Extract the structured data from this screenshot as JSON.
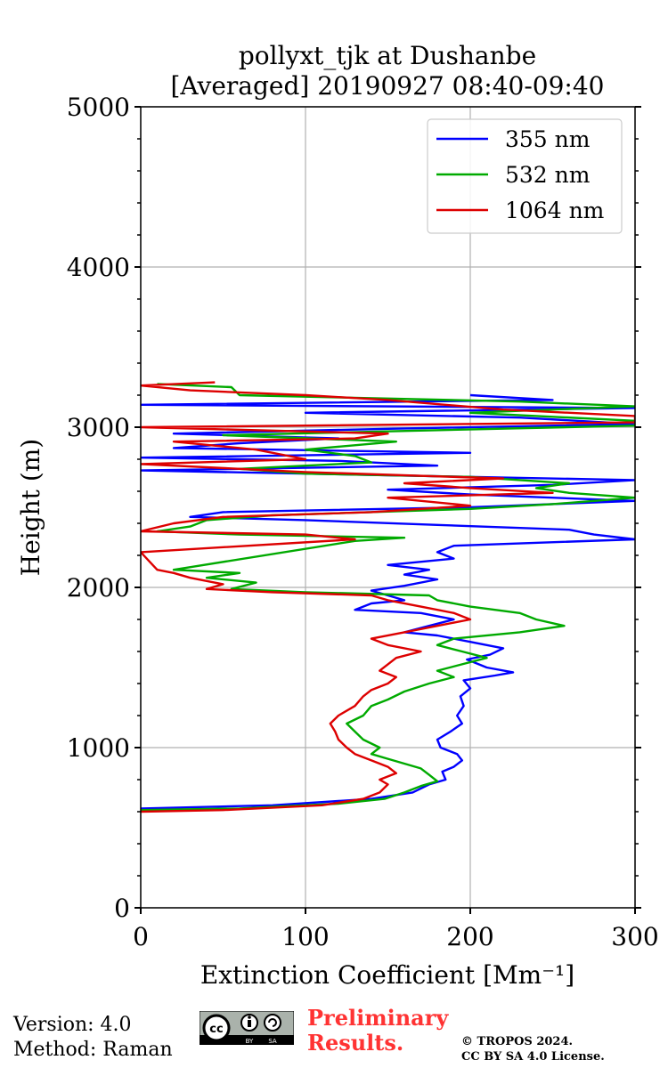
{
  "chart_data": {
    "type": "line",
    "title": "pollyxt_tjk at Dushanbe",
    "subtitle": "[Averaged] 20190927 08:40-09:40",
    "xlabel": "Extinction Coefficient [Mm⁻¹]",
    "ylabel": "Height (m)",
    "xlim": [
      0,
      300
    ],
    "ylim": [
      0,
      5000
    ],
    "xticks": [
      0,
      100,
      200,
      300
    ],
    "xtick_labels": [
      "0",
      "100",
      "200",
      "300"
    ],
    "yticks": [
      0,
      1000,
      2000,
      3000,
      4000,
      5000
    ],
    "ytick_labels": [
      "0",
      "1000",
      "2000",
      "3000",
      "4000",
      "5000"
    ],
    "grid": true,
    "legend_position": "top-right",
    "series": [
      {
        "name": "355 nm",
        "color": "#0000ff",
        "points": [
          [
            0,
            620
          ],
          [
            80,
            640
          ],
          [
            140,
            680
          ],
          [
            165,
            720
          ],
          [
            175,
            770
          ],
          [
            185,
            800
          ],
          [
            183,
            850
          ],
          [
            190,
            880
          ],
          [
            195,
            920
          ],
          [
            192,
            960
          ],
          [
            182,
            1000
          ],
          [
            180,
            1050
          ],
          [
            188,
            1100
          ],
          [
            195,
            1150
          ],
          [
            192,
            1200
          ],
          [
            196,
            1260
          ],
          [
            194,
            1320
          ],
          [
            200,
            1370
          ],
          [
            196,
            1420
          ],
          [
            215,
            1450
          ],
          [
            226,
            1470
          ],
          [
            210,
            1500
          ],
          [
            198,
            1550
          ],
          [
            212,
            1580
          ],
          [
            220,
            1620
          ],
          [
            200,
            1660
          ],
          [
            180,
            1700
          ],
          [
            160,
            1720
          ],
          [
            175,
            1760
          ],
          [
            190,
            1800
          ],
          [
            170,
            1840
          ],
          [
            130,
            1860
          ],
          [
            140,
            1900
          ],
          [
            160,
            1920
          ],
          [
            150,
            1950
          ],
          [
            140,
            1980
          ],
          [
            160,
            2010
          ],
          [
            180,
            2050
          ],
          [
            160,
            2080
          ],
          [
            175,
            2110
          ],
          [
            150,
            2140
          ],
          [
            190,
            2180
          ],
          [
            180,
            2220
          ],
          [
            190,
            2260
          ],
          [
            300,
            2300
          ],
          [
            275,
            2330
          ],
          [
            260,
            2360
          ],
          [
            180,
            2390
          ],
          [
            100,
            2420
          ],
          [
            30,
            2440
          ],
          [
            50,
            2470
          ],
          [
            200,
            2500
          ],
          [
            300,
            2540
          ],
          [
            200,
            2580
          ],
          [
            150,
            2610
          ],
          [
            250,
            2640
          ],
          [
            300,
            2670
          ],
          [
            150,
            2700
          ],
          [
            0,
            2730
          ],
          [
            180,
            2760
          ],
          [
            120,
            2790
          ],
          [
            0,
            2810
          ],
          [
            200,
            2840
          ],
          [
            20,
            2870
          ],
          [
            60,
            2900
          ],
          [
            120,
            2930
          ],
          [
            20,
            2960
          ],
          [
            150,
            2990
          ],
          [
            300,
            3020
          ],
          [
            230,
            3060
          ],
          [
            100,
            3090
          ],
          [
            300,
            3120
          ],
          [
            0,
            3140
          ],
          [
            250,
            3170
          ],
          [
            200,
            3200
          ]
        ]
      },
      {
        "name": "532 nm",
        "color": "#00aa00",
        "points": [
          [
            0,
            610
          ],
          [
            60,
            620
          ],
          [
            120,
            650
          ],
          [
            148,
            680
          ],
          [
            160,
            720
          ],
          [
            170,
            760
          ],
          [
            180,
            790
          ],
          [
            175,
            830
          ],
          [
            170,
            870
          ],
          [
            160,
            900
          ],
          [
            150,
            930
          ],
          [
            140,
            960
          ],
          [
            145,
            1000
          ],
          [
            135,
            1050
          ],
          [
            130,
            1100
          ],
          [
            125,
            1150
          ],
          [
            135,
            1200
          ],
          [
            140,
            1260
          ],
          [
            150,
            1300
          ],
          [
            160,
            1350
          ],
          [
            175,
            1400
          ],
          [
            190,
            1440
          ],
          [
            180,
            1480
          ],
          [
            195,
            1520
          ],
          [
            210,
            1560
          ],
          [
            195,
            1600
          ],
          [
            180,
            1640
          ],
          [
            190,
            1680
          ],
          [
            230,
            1720
          ],
          [
            257,
            1760
          ],
          [
            240,
            1800
          ],
          [
            230,
            1840
          ],
          [
            200,
            1880
          ],
          [
            180,
            1920
          ],
          [
            175,
            1950
          ],
          [
            100,
            1970
          ],
          [
            55,
            1990
          ],
          [
            70,
            2030
          ],
          [
            40,
            2060
          ],
          [
            60,
            2090
          ],
          [
            20,
            2110
          ],
          [
            130,
            2290
          ],
          [
            160,
            2310
          ],
          [
            60,
            2330
          ],
          [
            10,
            2350
          ],
          [
            30,
            2380
          ],
          [
            40,
            2420
          ],
          [
            80,
            2450
          ],
          [
            200,
            2490
          ],
          [
            250,
            2520
          ],
          [
            300,
            2560
          ],
          [
            260,
            2590
          ],
          [
            240,
            2620
          ],
          [
            260,
            2650
          ],
          [
            200,
            2690
          ],
          [
            100,
            2710
          ],
          [
            60,
            2740
          ],
          [
            140,
            2780
          ],
          [
            130,
            2820
          ],
          [
            100,
            2860
          ],
          [
            155,
            2910
          ],
          [
            50,
            2950
          ],
          [
            300,
            3010
          ],
          [
            300,
            3040
          ],
          [
            200,
            3090
          ],
          [
            300,
            3130
          ],
          [
            230,
            3160
          ],
          [
            60,
            3200
          ],
          [
            55,
            3250
          ],
          [
            10,
            3270
          ]
        ]
      },
      {
        "name": "1064 nm",
        "color": "#dd0000",
        "points": [
          [
            0,
            600
          ],
          [
            50,
            610
          ],
          [
            110,
            640
          ],
          [
            135,
            680
          ],
          [
            145,
            720
          ],
          [
            150,
            770
          ],
          [
            145,
            800
          ],
          [
            155,
            840
          ],
          [
            150,
            880
          ],
          [
            140,
            920
          ],
          [
            130,
            960
          ],
          [
            125,
            1000
          ],
          [
            120,
            1050
          ],
          [
            118,
            1100
          ],
          [
            115,
            1150
          ],
          [
            120,
            1200
          ],
          [
            130,
            1260
          ],
          [
            135,
            1320
          ],
          [
            140,
            1360
          ],
          [
            150,
            1400
          ],
          [
            155,
            1440
          ],
          [
            145,
            1480
          ],
          [
            150,
            1520
          ],
          [
            155,
            1560
          ],
          [
            170,
            1600
          ],
          [
            150,
            1640
          ],
          [
            140,
            1680
          ],
          [
            160,
            1720
          ],
          [
            180,
            1760
          ],
          [
            200,
            1800
          ],
          [
            190,
            1840
          ],
          [
            170,
            1880
          ],
          [
            150,
            1920
          ],
          [
            140,
            1950
          ],
          [
            80,
            1970
          ],
          [
            40,
            1990
          ],
          [
            50,
            2020
          ],
          [
            30,
            2060
          ],
          [
            20,
            2090
          ],
          [
            10,
            2110
          ],
          [
            0,
            2220
          ],
          [
            130,
            2300
          ],
          [
            100,
            2330
          ],
          [
            0,
            2350
          ],
          [
            20,
            2400
          ],
          [
            50,
            2440
          ],
          [
            140,
            2470
          ],
          [
            200,
            2510
          ],
          [
            150,
            2560
          ],
          [
            250,
            2590
          ],
          [
            200,
            2620
          ],
          [
            160,
            2650
          ],
          [
            220,
            2680
          ],
          [
            100,
            2720
          ],
          [
            0,
            2770
          ],
          [
            100,
            2800
          ],
          [
            70,
            2860
          ],
          [
            20,
            2910
          ],
          [
            130,
            2930
          ],
          [
            150,
            2960
          ],
          [
            0,
            3000
          ],
          [
            300,
            3030
          ],
          [
            300,
            3070
          ],
          [
            220,
            3110
          ],
          [
            150,
            3170
          ],
          [
            100,
            3200
          ],
          [
            30,
            3230
          ],
          [
            0,
            3260
          ],
          [
            45,
            3280
          ]
        ]
      }
    ]
  },
  "footer": {
    "version": "Version: 4.0",
    "method": "Method: Raman",
    "preliminary_line1": "Preliminary",
    "preliminary_line2": "Results.",
    "copyright_line1": "© TROPOS 2024.",
    "copyright_line2": "CC BY SA 4.0 License.",
    "license_badge": "cc-by-sa-icon"
  }
}
